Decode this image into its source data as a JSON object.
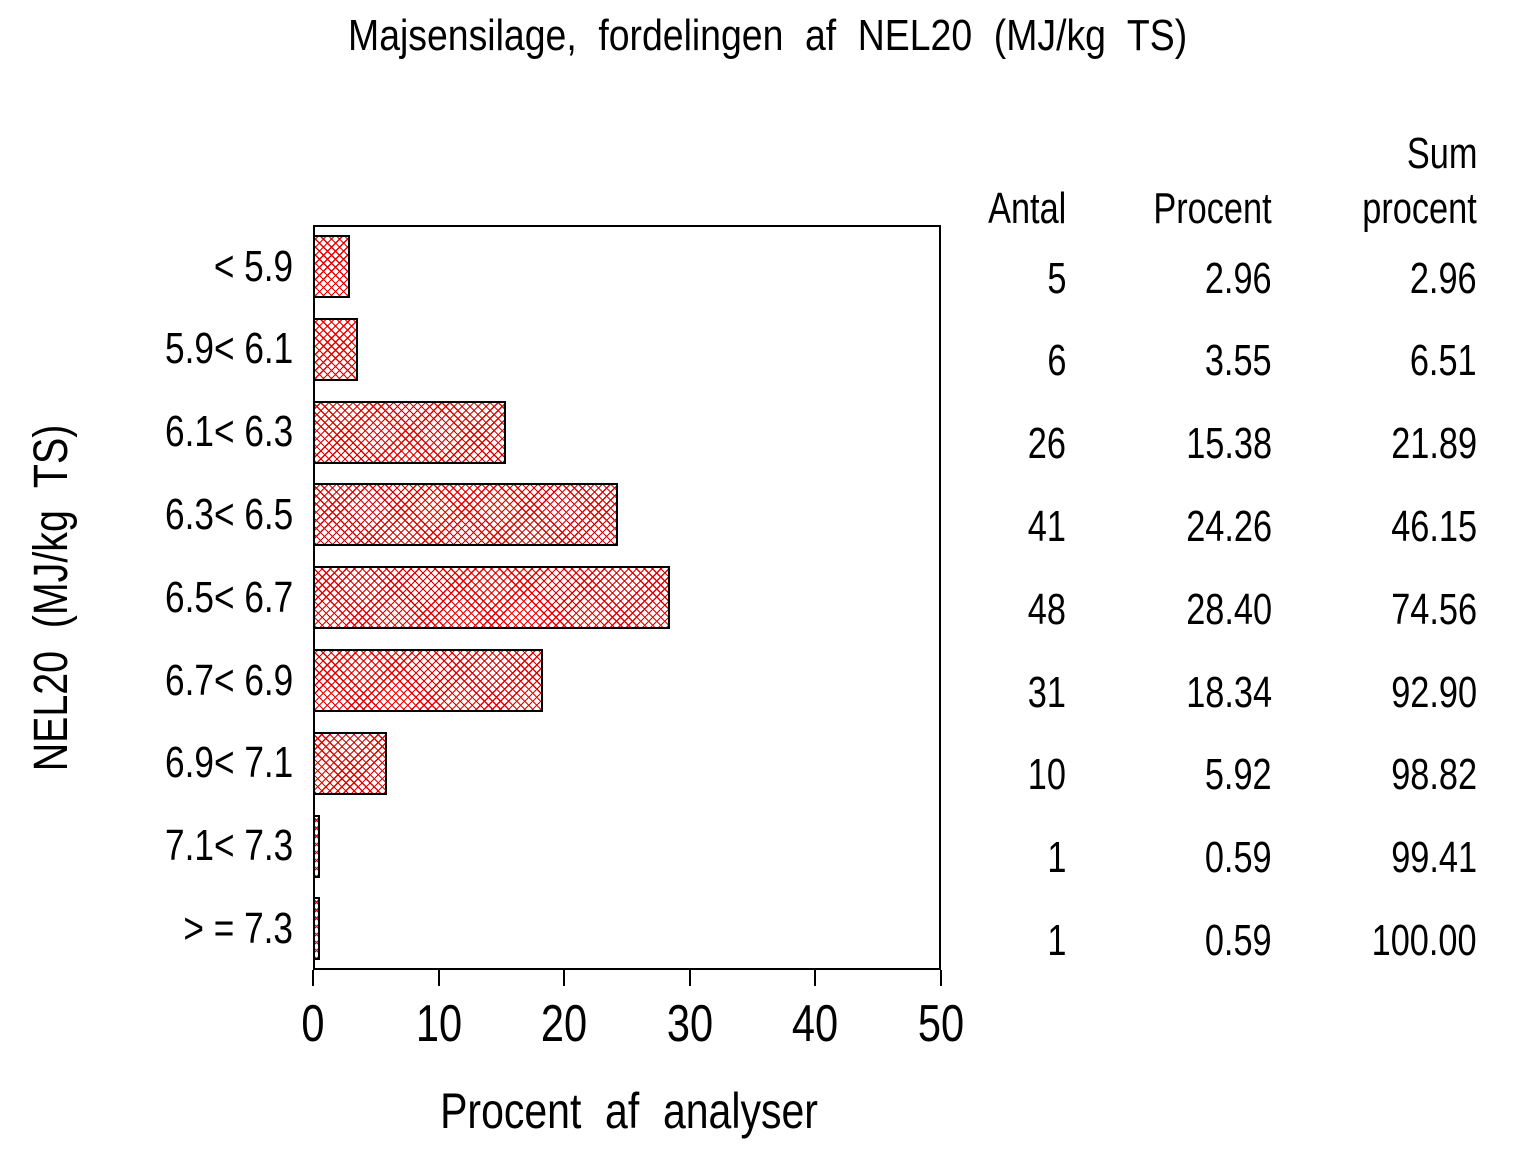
{
  "title": "Majsensilage, fordelingen af NEL20 (MJ/kg TS)",
  "chart_data": {
    "type": "bar",
    "orientation": "horizontal",
    "title": "Majsensilage, fordelingen af NEL20 (MJ/kg TS)",
    "xlabel": "Procent af analyser",
    "ylabel": "NEL20 (MJ/kg TS)",
    "xlim": [
      0,
      50
    ],
    "xticks": [
      0,
      10,
      20,
      30,
      40,
      50
    ],
    "grid": false,
    "legend": "none",
    "bar_style": "red-diagonal-crosshatch",
    "colors": {
      "bar_hatch": "#e40000",
      "bar_border": "#000000",
      "axis": "#000000",
      "text": "#000000",
      "background": "#ffffff"
    },
    "categories": [
      "< 5.9",
      "5.9< 6.1",
      "6.1< 6.3",
      "6.3< 6.5",
      "6.5< 6.7",
      "6.7< 6.9",
      "6.9< 7.1",
      "7.1< 7.3",
      "> = 7.3"
    ],
    "values": [
      2.96,
      3.55,
      15.38,
      24.26,
      28.4,
      18.34,
      5.92,
      0.59,
      0.59
    ],
    "counts": [
      5,
      6,
      26,
      41,
      48,
      31,
      10,
      1,
      1
    ],
    "cumulative_percent": [
      2.96,
      6.51,
      21.89,
      46.15,
      74.56,
      92.9,
      98.82,
      99.41,
      100.0
    ]
  },
  "table": {
    "col_antal": "Antal",
    "col_procent": "Procent",
    "col_sum_line1": "Sum",
    "col_sum_line2": "procent",
    "rows": [
      {
        "antal": "5",
        "procent": "2.96",
        "sum": "2.96"
      },
      {
        "antal": "6",
        "procent": "3.55",
        "sum": "6.51"
      },
      {
        "antal": "26",
        "procent": "15.38",
        "sum": "21.89"
      },
      {
        "antal": "41",
        "procent": "24.26",
        "sum": "46.15"
      },
      {
        "antal": "48",
        "procent": "28.40",
        "sum": "74.56"
      },
      {
        "antal": "31",
        "procent": "18.34",
        "sum": "92.90"
      },
      {
        "antal": "10",
        "procent": "5.92",
        "sum": "98.82"
      },
      {
        "antal": "1",
        "procent": "0.59",
        "sum": "99.41"
      },
      {
        "antal": "1",
        "procent": "0.59",
        "sum": "100.00"
      }
    ]
  }
}
